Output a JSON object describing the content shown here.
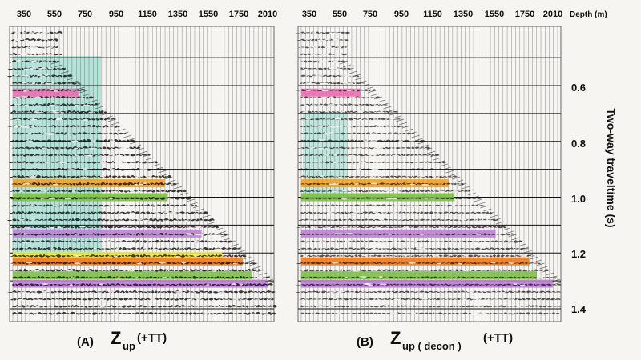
{
  "depth_ticks": [
    "350",
    "550",
    "750",
    "950",
    "1150",
    "1350",
    "1550",
    "1750",
    "2010"
  ],
  "depth_unit_label": "Depth (m)",
  "time_ticks": [
    "0.6",
    "0.8",
    "1.0",
    "1.2",
    "1.4"
  ],
  "y_axis_label": "Two-way traveltime (s)",
  "panels": [
    {
      "letter": "(A)",
      "symbol": "Z",
      "subscript": "up",
      "suffix": "(+TT)",
      "horizons": [
        {
          "color": "#f06ab4",
          "time": 0.625,
          "depth_to": 720
        },
        {
          "color": "#f5a020",
          "time": 0.95,
          "depth_to": 1310
        },
        {
          "color": "#7bc142",
          "time": 1.0,
          "depth_to": 1330
        },
        {
          "color": "#c07fd8",
          "time": 1.13,
          "depth_to": 1560
        },
        {
          "color": "#f2ee3a",
          "time": 1.21,
          "depth_to": 1700
        },
        {
          "color": "#ef7a1a",
          "time": 1.23,
          "depth_to": 1840
        },
        {
          "color": "#7bc142",
          "time": 1.28,
          "depth_to": 1900
        },
        {
          "color": "#c07fd8",
          "time": 1.31,
          "depth_to": 2010
        }
      ]
    },
    {
      "letter": "(B)",
      "symbol": "Z",
      "subscript": "up ( decon )",
      "suffix": "(+TT)",
      "horizons": [
        {
          "color": "#f06ab4",
          "time": 0.625,
          "depth_to": 700
        },
        {
          "color": "#f5a020",
          "time": 0.95,
          "depth_to": 1300
        },
        {
          "color": "#7bc142",
          "time": 1.0,
          "depth_to": 1340
        },
        {
          "color": "#c07fd8",
          "time": 1.13,
          "depth_to": 1620
        },
        {
          "color": "#ef7a1a",
          "time": 1.23,
          "depth_to": 1850
        },
        {
          "color": "#7bc142",
          "time": 1.28,
          "depth_to": 1900
        },
        {
          "color": "#c07fd8",
          "time": 1.31,
          "depth_to": 2010
        }
      ]
    }
  ],
  "colors": {
    "wavelet": "#101010",
    "grid": "#1e1e1e",
    "shade_cyan": "#9fdcd2",
    "background": "#f6f5f1"
  }
}
